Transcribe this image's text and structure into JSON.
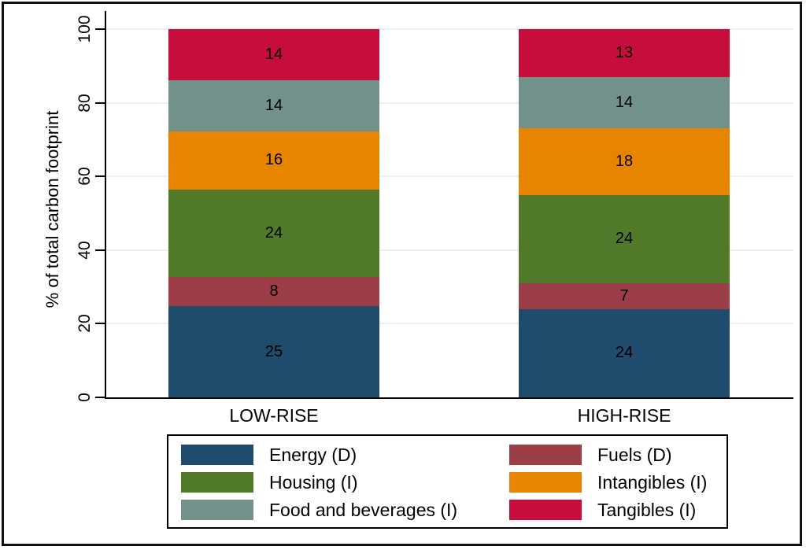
{
  "chart_data": {
    "type": "bar",
    "stacked": true,
    "title": "",
    "ylabel": "% of total carbon footprint",
    "ylim": [
      0,
      100
    ],
    "yticks": [
      0,
      20,
      40,
      60,
      80,
      100
    ],
    "grid": true,
    "legend_position": "bottom",
    "categories": [
      "LOW-RISE",
      "HIGH-RISE"
    ],
    "series": [
      {
        "name": "Energy (D)",
        "color": "#1f4b6d",
        "values": [
          25,
          24
        ]
      },
      {
        "name": "Fuels (D)",
        "color": "#9c3e47",
        "values": [
          8,
          7
        ]
      },
      {
        "name": "Housing (I)",
        "color": "#507929",
        "values": [
          24,
          24
        ]
      },
      {
        "name": "Intangibles (I)",
        "color": "#e78500",
        "values": [
          16,
          18
        ]
      },
      {
        "name": "Food and beverages (I)",
        "color": "#72918a",
        "values": [
          14,
          14
        ]
      },
      {
        "name": "Tangibles (I)",
        "color": "#c60d3b",
        "values": [
          14,
          13
        ]
      }
    ],
    "legend_columns": [
      [
        0,
        2,
        4
      ],
      [
        1,
        3,
        5
      ]
    ],
    "colors": {
      "gridline": "#e8f1f4",
      "axis": "#000000",
      "text": "#000000",
      "figure_border": "#111111"
    }
  }
}
